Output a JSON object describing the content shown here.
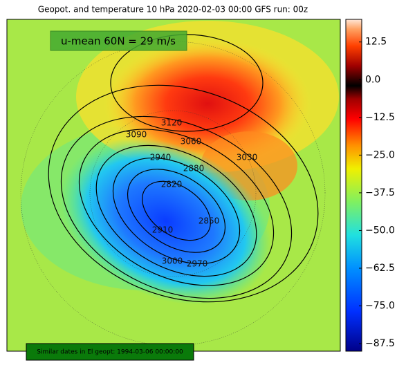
{
  "title": "Geopot. and temperature 10 hPa 2020-02-03 00:00 GFS run: 00z",
  "annotation": "u-mean 60N = 29 m/s",
  "footer": "Similar dates in El geopt: 1994-03-06 00:00:00",
  "colorbar": {
    "lim": [
      -90,
      20
    ],
    "ticks": [
      12.5,
      {
        "value": 0,
        "label": "0.0"
      },
      {
        "value": -12.5,
        "label": "−12.5"
      },
      {
        "value": -25,
        "label": "−25.0"
      },
      {
        "value": -37.5,
        "label": "−37.5"
      },
      {
        "value": -50,
        "label": "−50.0"
      },
      {
        "value": -62.5,
        "label": "−62.5"
      },
      {
        "value": -75,
        "label": "−75.0"
      },
      {
        "value": -87.5,
        "label": "−87.5"
      }
    ]
  },
  "contour_labels": [
    3120,
    3090,
    3060,
    3030,
    2940,
    2880,
    2820,
    2850,
    2910,
    3000,
    2970
  ]
}
